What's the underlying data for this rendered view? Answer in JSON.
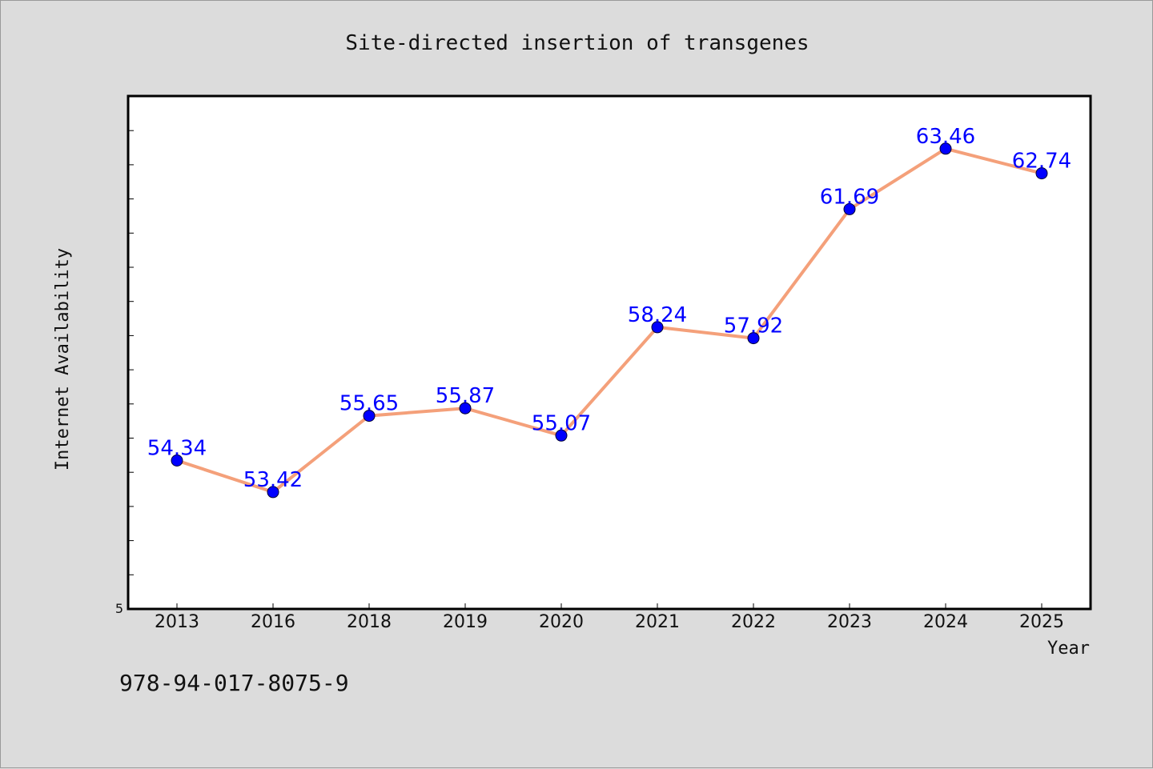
{
  "chart_data": {
    "type": "line",
    "title": "Site-directed insertion of transgenes",
    "xlabel": "Year",
    "ylabel": "Internet Availability",
    "categories": [
      "2013",
      "2016",
      "2018",
      "2019",
      "2020",
      "2021",
      "2022",
      "2023",
      "2024",
      "2025"
    ],
    "series": [
      {
        "values": [
          54.34,
          53.42,
          55.65,
          55.87,
          55.07,
          58.24,
          57.92,
          61.69,
          63.46,
          62.74
        ],
        "labels": [
          "54.34",
          "53.42",
          "55.65",
          "55.87",
          "55.07",
          "58.24",
          "57.92",
          "61.69",
          "63.46",
          "62.74"
        ],
        "color": "#f4a07a",
        "marker_color": "#0000ff"
      }
    ],
    "y_tick_label": "5",
    "ylim": [
      50,
      65
    ],
    "grid": false,
    "legend": false
  },
  "footer": {
    "isbn": "978-94-017-8075-9"
  },
  "colors": {
    "background": "#dcdcdc",
    "plot_background": "#ffffff",
    "line": "#f4a07a",
    "marker": "#0000ff",
    "label": "#0000ff"
  }
}
